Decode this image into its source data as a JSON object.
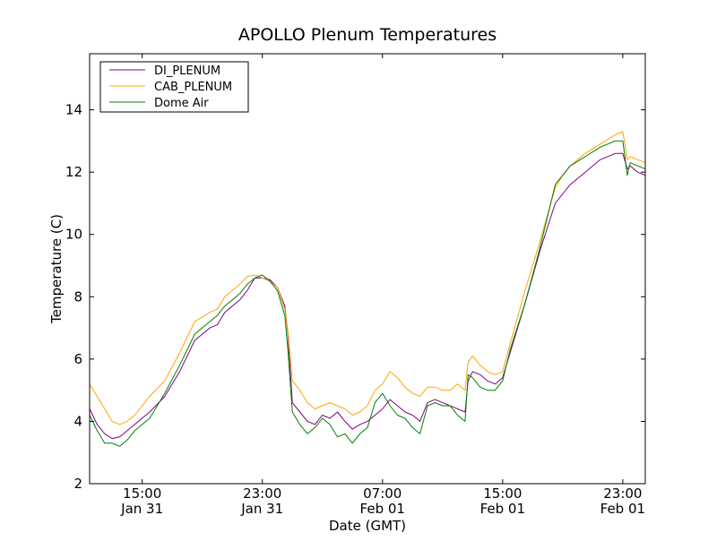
{
  "chart_data": {
    "type": "line",
    "title": "APOLLO Plenum Temperatures",
    "xlabel": "Date (GMT)",
    "ylabel": "Temperature (C)",
    "x_unit": "hours since Jan 31 11:30 GMT",
    "xlim": [
      0,
      37
    ],
    "ylim": [
      2,
      15.8
    ],
    "grid": false,
    "legend_position": "top-left",
    "y_ticks": [
      {
        "value": 2,
        "label": "2"
      },
      {
        "value": 4,
        "label": "4"
      },
      {
        "value": 6,
        "label": "6"
      },
      {
        "value": 8,
        "label": "8"
      },
      {
        "value": 10,
        "label": "10"
      },
      {
        "value": 12,
        "label": "12"
      },
      {
        "value": 14,
        "label": "14"
      }
    ],
    "x_ticks": [
      {
        "value": 3.5,
        "time": "15:00",
        "date": "Jan 31"
      },
      {
        "value": 11.5,
        "time": "23:00",
        "date": "Jan 31"
      },
      {
        "value": 19.5,
        "time": "07:00",
        "date": "Feb 01"
      },
      {
        "value": 27.5,
        "time": "15:00",
        "date": "Feb 01"
      },
      {
        "value": 35.5,
        "time": "23:00",
        "date": "Feb 01"
      }
    ],
    "series": [
      {
        "name": "DI_PLENUM",
        "color": "#800080",
        "x": [
          0,
          0.5,
          1,
          1.5,
          2,
          2.5,
          3,
          3.5,
          4,
          5,
          6,
          7,
          8,
          8.5,
          9,
          10,
          10.5,
          11,
          11.5,
          12,
          12.5,
          13,
          13.2,
          13.5,
          14,
          14.5,
          15,
          15.5,
          16,
          16.5,
          17,
          17.5,
          18,
          18.5,
          19,
          19.5,
          20,
          20.5,
          21,
          21.5,
          22,
          22.5,
          23,
          23.5,
          24,
          24.5,
          25,
          25.2,
          25.5,
          26,
          26.5,
          27,
          27.5,
          28,
          29,
          30,
          31,
          31.5,
          32,
          33,
          34,
          35,
          35.5,
          35.8,
          36,
          36.5,
          37
        ],
        "values": [
          4.4,
          3.9,
          3.6,
          3.45,
          3.5,
          3.7,
          3.9,
          4.1,
          4.3,
          4.8,
          5.6,
          6.6,
          7.0,
          7.1,
          7.5,
          7.9,
          8.2,
          8.6,
          8.6,
          8.55,
          8.3,
          7.7,
          6.8,
          4.6,
          4.3,
          4.0,
          3.9,
          4.2,
          4.1,
          4.3,
          4.0,
          3.75,
          3.9,
          4.0,
          4.2,
          4.4,
          4.7,
          4.5,
          4.3,
          4.2,
          4.0,
          4.6,
          4.7,
          4.6,
          4.5,
          4.4,
          4.3,
          5.3,
          5.6,
          5.5,
          5.3,
          5.2,
          5.4,
          6.2,
          7.8,
          9.5,
          11.0,
          11.3,
          11.6,
          12.0,
          12.4,
          12.6,
          12.6,
          12.1,
          12.2,
          12.0,
          11.9
        ]
      },
      {
        "name": "CAB_PLENUM",
        "color": "#ffa500",
        "x": [
          0,
          0.5,
          1,
          1.5,
          2,
          2.5,
          3,
          3.5,
          4,
          5,
          6,
          7,
          8,
          8.5,
          9,
          10,
          10.5,
          11,
          11.5,
          12,
          12.5,
          13,
          13.2,
          13.5,
          14,
          14.5,
          15,
          15.5,
          16,
          16.5,
          17,
          17.5,
          18,
          18.5,
          19,
          19.5,
          20,
          20.5,
          21,
          21.5,
          22,
          22.5,
          23,
          23.5,
          24,
          24.5,
          25,
          25.2,
          25.5,
          26,
          26.5,
          27,
          27.5,
          28,
          29,
          30,
          31,
          31.5,
          32,
          33,
          34,
          35,
          35.5,
          35.8,
          36,
          36.5,
          37
        ],
        "values": [
          5.2,
          4.8,
          4.4,
          4.0,
          3.9,
          4.0,
          4.2,
          4.5,
          4.8,
          5.3,
          6.2,
          7.2,
          7.5,
          7.6,
          8.0,
          8.4,
          8.65,
          8.7,
          8.6,
          8.5,
          8.3,
          7.6,
          6.9,
          5.3,
          5.0,
          4.6,
          4.4,
          4.5,
          4.6,
          4.5,
          4.4,
          4.2,
          4.3,
          4.5,
          5.0,
          5.2,
          5.6,
          5.4,
          5.1,
          4.9,
          4.8,
          5.1,
          5.1,
          5.0,
          5.0,
          5.2,
          5.0,
          5.9,
          6.1,
          5.8,
          5.6,
          5.5,
          5.6,
          6.5,
          8.2,
          9.8,
          11.5,
          11.9,
          12.2,
          12.6,
          12.9,
          13.2,
          13.3,
          12.4,
          12.5,
          12.4,
          12.3
        ]
      },
      {
        "name": "Dome Air",
        "color": "#008000",
        "x": [
          0,
          0.5,
          1,
          1.5,
          2,
          2.5,
          3,
          3.5,
          4,
          5,
          6,
          7,
          8,
          8.5,
          9,
          10,
          10.5,
          11,
          11.5,
          12,
          12.5,
          13,
          13.2,
          13.5,
          14,
          14.5,
          15,
          15.5,
          16,
          16.5,
          17,
          17.5,
          18,
          18.5,
          19,
          19.5,
          20,
          20.5,
          21,
          21.5,
          22,
          22.5,
          23,
          23.5,
          24,
          24.5,
          25,
          25.2,
          25.5,
          26,
          26.5,
          27,
          27.5,
          28,
          29,
          30,
          31,
          31.5,
          32,
          33,
          34,
          35,
          35.5,
          35.8,
          36,
          36.5,
          37
        ],
        "values": [
          4.2,
          3.7,
          3.3,
          3.3,
          3.2,
          3.4,
          3.7,
          3.9,
          4.1,
          4.9,
          5.8,
          6.8,
          7.2,
          7.4,
          7.7,
          8.1,
          8.4,
          8.6,
          8.7,
          8.5,
          8.2,
          7.4,
          6.3,
          4.3,
          3.9,
          3.6,
          3.8,
          4.1,
          3.9,
          3.5,
          3.6,
          3.3,
          3.6,
          3.8,
          4.6,
          4.9,
          4.5,
          4.2,
          4.1,
          3.8,
          3.6,
          4.5,
          4.6,
          4.5,
          4.5,
          4.2,
          4.0,
          5.5,
          5.4,
          5.1,
          5.0,
          5.0,
          5.3,
          6.3,
          7.8,
          9.6,
          11.6,
          11.9,
          12.2,
          12.5,
          12.8,
          13.0,
          13.0,
          11.9,
          12.3,
          12.2,
          12.1
        ]
      }
    ]
  }
}
